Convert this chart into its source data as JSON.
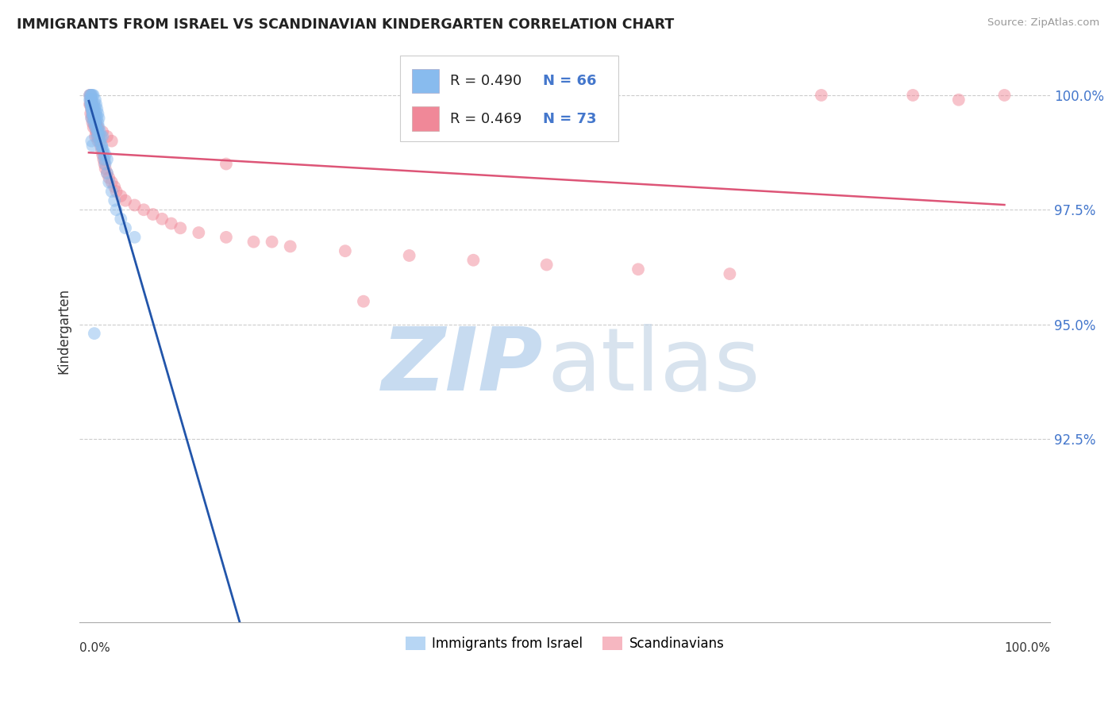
{
  "title": "IMMIGRANTS FROM ISRAEL VS SCANDINAVIAN KINDERGARTEN CORRELATION CHART",
  "source": "Source: ZipAtlas.com",
  "ylabel": "Kindergarten",
  "ylim": [
    88.5,
    101.2
  ],
  "xlim": [
    -0.01,
    1.05
  ],
  "yticks": [
    92.5,
    95.0,
    97.5,
    100.0
  ],
  "legend_label_israel": "Immigrants from Israel",
  "legend_label_scand": "Scandinavians",
  "dot_color_israel": "#88bbee",
  "dot_color_scand": "#f08898",
  "trendline_color_israel": "#2255aa",
  "trendline_color_scand": "#dd5577",
  "watermark_zip_color": "#bdd5ee",
  "watermark_atlas_color": "#c8d8e8",
  "legend_R_israel": "R = 0.490",
  "legend_N_israel": "N = 66",
  "legend_R_scand": "R = 0.469",
  "legend_N_scand": "N = 73",
  "legend_text_color": "#4477cc",
  "israel_x": [
    0.001,
    0.002,
    0.002,
    0.003,
    0.003,
    0.003,
    0.004,
    0.004,
    0.004,
    0.005,
    0.005,
    0.005,
    0.006,
    0.006,
    0.007,
    0.007,
    0.007,
    0.008,
    0.008,
    0.009,
    0.009,
    0.01,
    0.01,
    0.011,
    0.011,
    0.012,
    0.013,
    0.014,
    0.015,
    0.016,
    0.017,
    0.018,
    0.02,
    0.022,
    0.025,
    0.028,
    0.03,
    0.035,
    0.04,
    0.05,
    0.002,
    0.003,
    0.004,
    0.005,
    0.006,
    0.007,
    0.008,
    0.009,
    0.01,
    0.012,
    0.014,
    0.016,
    0.018,
    0.02,
    0.001,
    0.002,
    0.003,
    0.004,
    0.003,
    0.005,
    0.007,
    0.01,
    0.015,
    0.003,
    0.004,
    0.006
  ],
  "israel_y": [
    100.0,
    100.0,
    99.8,
    99.9,
    99.7,
    100.0,
    99.8,
    99.6,
    100.0,
    99.7,
    99.5,
    100.0,
    99.8,
    99.6,
    99.9,
    99.7,
    99.5,
    99.8,
    99.6,
    99.7,
    99.5,
    99.6,
    99.4,
    99.5,
    99.3,
    99.2,
    99.1,
    98.9,
    98.8,
    98.7,
    98.6,
    98.5,
    98.3,
    98.1,
    97.9,
    97.7,
    97.5,
    97.3,
    97.1,
    96.9,
    99.9,
    99.8,
    99.7,
    99.6,
    99.5,
    99.4,
    99.3,
    99.2,
    99.1,
    99.0,
    98.9,
    98.8,
    98.7,
    98.6,
    99.9,
    99.8,
    99.7,
    99.6,
    99.5,
    99.4,
    99.3,
    99.2,
    99.1,
    99.0,
    98.9,
    94.8
  ],
  "scand_x": [
    0.001,
    0.001,
    0.002,
    0.002,
    0.002,
    0.003,
    0.003,
    0.003,
    0.004,
    0.004,
    0.004,
    0.005,
    0.005,
    0.005,
    0.006,
    0.006,
    0.007,
    0.007,
    0.007,
    0.008,
    0.008,
    0.009,
    0.009,
    0.01,
    0.01,
    0.011,
    0.012,
    0.013,
    0.014,
    0.015,
    0.016,
    0.017,
    0.018,
    0.02,
    0.022,
    0.025,
    0.028,
    0.03,
    0.035,
    0.04,
    0.05,
    0.06,
    0.07,
    0.08,
    0.09,
    0.1,
    0.12,
    0.15,
    0.18,
    0.22,
    0.28,
    0.35,
    0.42,
    0.5,
    0.6,
    0.7,
    0.8,
    0.9,
    0.95,
    1.0,
    0.002,
    0.003,
    0.004,
    0.005,
    0.006,
    0.008,
    0.01,
    0.015,
    0.02,
    0.025,
    0.2,
    0.3,
    0.15
  ],
  "scand_y": [
    100.0,
    99.8,
    100.0,
    99.8,
    99.6,
    99.9,
    99.7,
    99.5,
    99.8,
    99.6,
    99.4,
    99.7,
    99.5,
    99.3,
    99.6,
    99.4,
    99.5,
    99.3,
    99.1,
    99.4,
    99.2,
    99.3,
    99.1,
    99.2,
    99.0,
    99.1,
    99.0,
    98.9,
    98.8,
    98.7,
    98.6,
    98.5,
    98.4,
    98.3,
    98.2,
    98.1,
    98.0,
    97.9,
    97.8,
    97.7,
    97.6,
    97.5,
    97.4,
    97.3,
    97.2,
    97.1,
    97.0,
    96.9,
    96.8,
    96.7,
    96.6,
    96.5,
    96.4,
    96.3,
    96.2,
    96.1,
    100.0,
    100.0,
    99.9,
    100.0,
    99.9,
    99.8,
    99.7,
    99.6,
    99.5,
    99.4,
    99.3,
    99.2,
    99.1,
    99.0,
    96.8,
    95.5,
    98.5
  ]
}
